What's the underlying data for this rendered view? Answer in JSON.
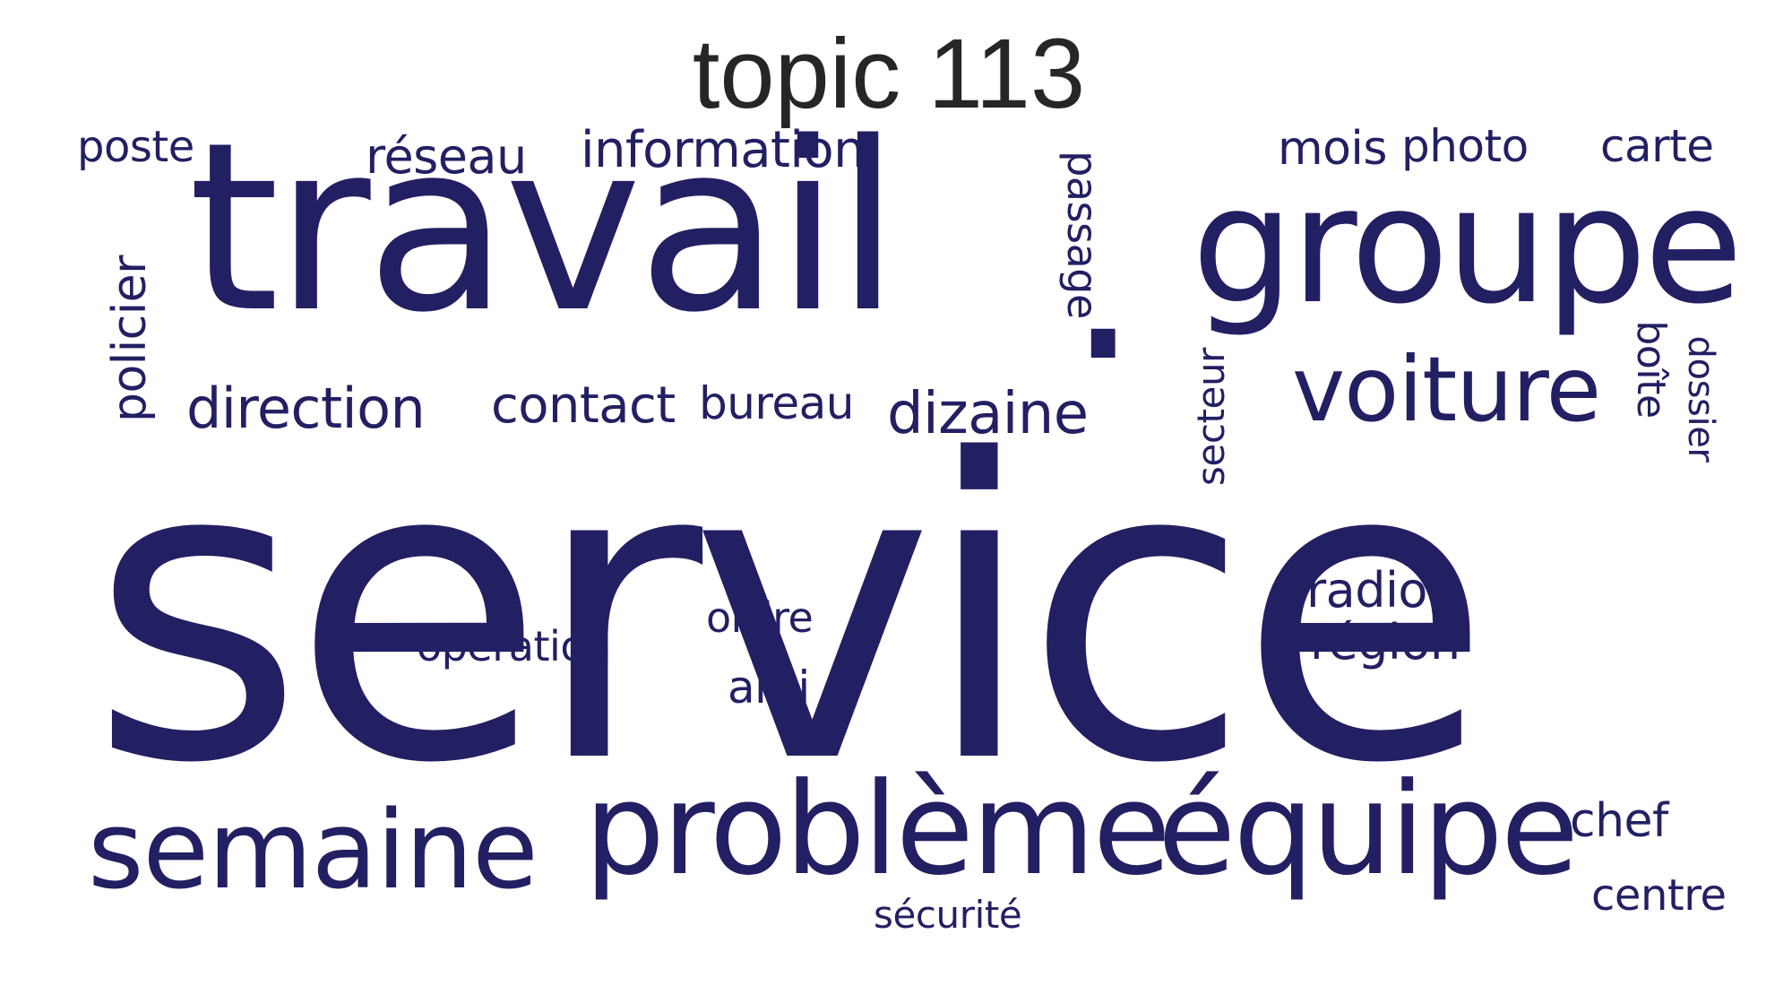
{
  "title": "topic 113",
  "color": "#231f63",
  "words": [
    {
      "text": "service",
      "name": "word-service"
    },
    {
      "text": "travail",
      "name": "word-travail"
    },
    {
      "text": ".",
      "name": "word-dot"
    },
    {
      "text": "groupe",
      "name": "word-groupe"
    },
    {
      "text": "problème",
      "name": "word-probleme"
    },
    {
      "text": "équipe",
      "name": "word-equipe"
    },
    {
      "text": "semaine",
      "name": "word-semaine"
    },
    {
      "text": "voiture",
      "name": "word-voiture"
    },
    {
      "text": "direction",
      "name": "word-direction"
    },
    {
      "text": "contact",
      "name": "word-contact"
    },
    {
      "text": "bureau",
      "name": "word-bureau"
    },
    {
      "text": "dizaine",
      "name": "word-dizaine"
    },
    {
      "text": "information",
      "name": "word-information"
    },
    {
      "text": "réseau",
      "name": "word-reseau"
    },
    {
      "text": "poste",
      "name": "word-poste"
    },
    {
      "text": "mois",
      "name": "word-mois"
    },
    {
      "text": "photo",
      "name": "word-photo"
    },
    {
      "text": "carte",
      "name": "word-carte"
    },
    {
      "text": "policier",
      "name": "word-policier"
    },
    {
      "text": "passage",
      "name": "word-passage"
    },
    {
      "text": "secteur",
      "name": "word-secteur"
    },
    {
      "text": "boîte",
      "name": "word-boite"
    },
    {
      "text": "dossier",
      "name": "word-dossier"
    },
    {
      "text": "radio",
      "name": "word-radio"
    },
    {
      "text": "région",
      "name": "word-region"
    },
    {
      "text": "opération",
      "name": "word-operation"
    },
    {
      "text": "ordre",
      "name": "word-ordre"
    },
    {
      "text": "ami",
      "name": "word-ami"
    },
    {
      "text": "chef",
      "name": "word-chef"
    },
    {
      "text": "centre",
      "name": "word-centre"
    },
    {
      "text": "sécurité",
      "name": "word-securite"
    }
  ]
}
